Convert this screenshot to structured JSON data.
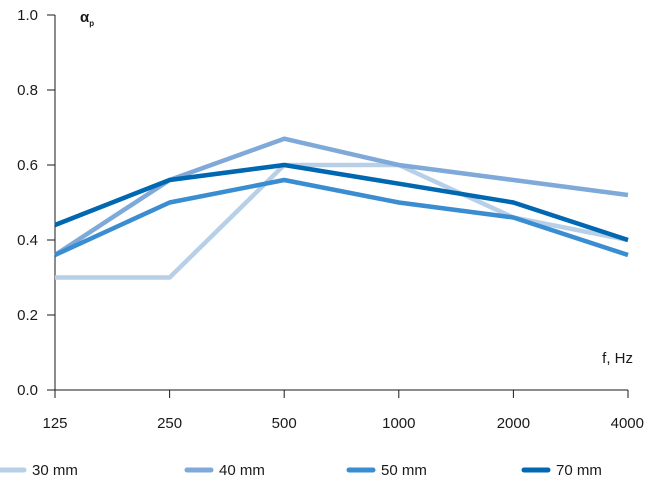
{
  "chart_data": {
    "type": "line",
    "categories": [
      "125",
      "250",
      "500",
      "1000",
      "2000",
      "4000"
    ],
    "ylim": [
      0.0,
      1.0
    ],
    "yticks": [
      "0.0",
      "0.2",
      "0.4",
      "0.6",
      "0.8",
      "1.0"
    ],
    "ylabel": {
      "main": "α",
      "sub": "p"
    },
    "xlabel": "f, Hz",
    "grid": false,
    "legend_position": "bottom",
    "series": [
      {
        "name": "30 mm",
        "color": "#b8cfe8",
        "values": [
          0.3,
          0.3,
          0.6,
          0.6,
          0.46,
          0.4
        ]
      },
      {
        "name": "40 mm",
        "color": "#7fa9d8",
        "values": [
          0.36,
          0.56,
          0.67,
          0.6,
          0.56,
          0.52
        ]
      },
      {
        "name": "50 mm",
        "color": "#3a8dd0",
        "values": [
          0.36,
          0.5,
          0.56,
          0.5,
          0.46,
          0.36
        ]
      },
      {
        "name": "70 mm",
        "color": "#0067b1",
        "values": [
          0.44,
          0.56,
          0.6,
          0.55,
          0.5,
          0.4
        ]
      }
    ]
  }
}
